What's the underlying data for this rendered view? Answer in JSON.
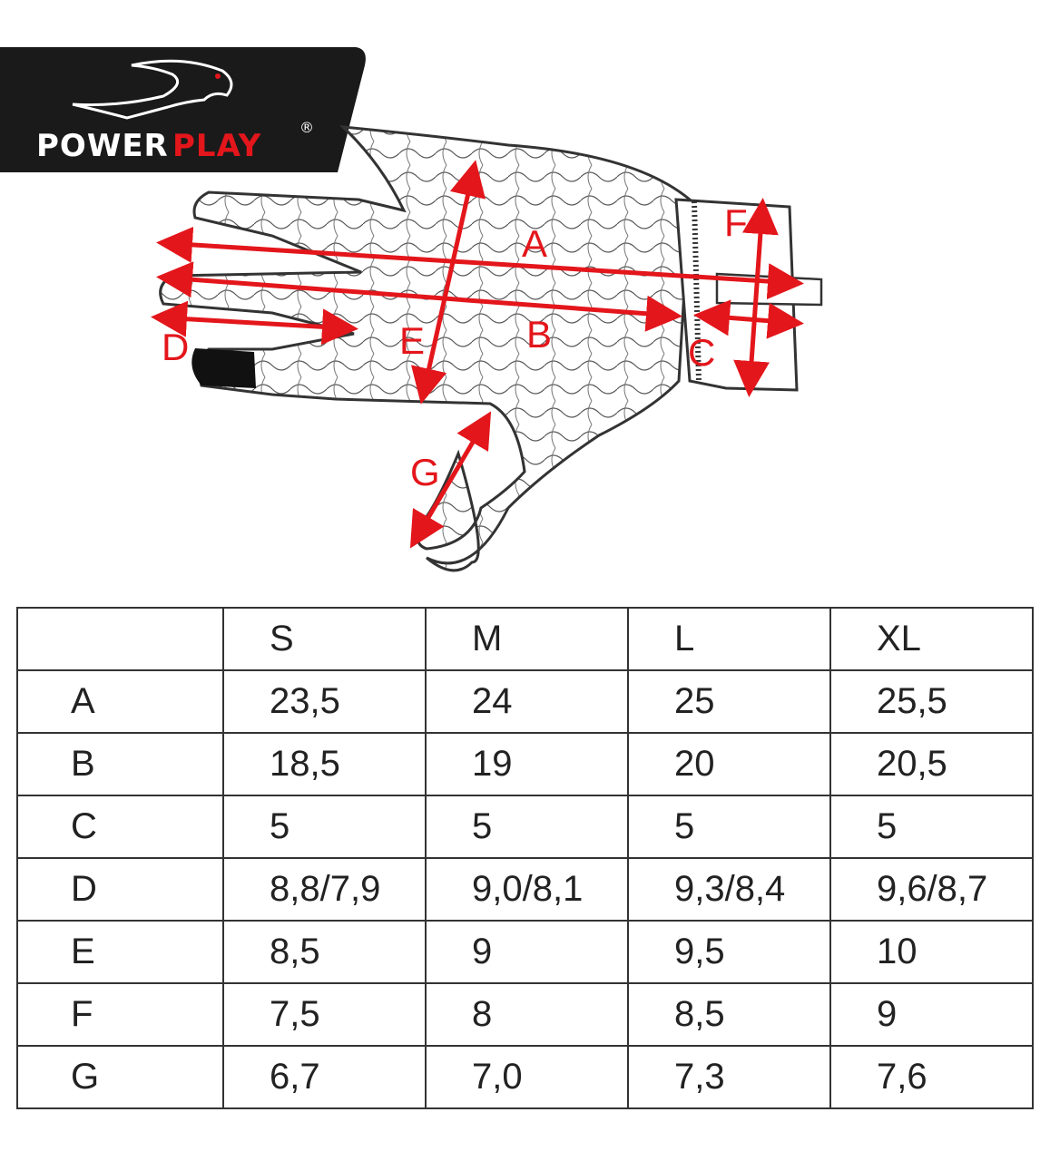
{
  "brand": {
    "name_part1": "POWER",
    "name_part2": "PLAY",
    "registered": "®"
  },
  "colors": {
    "accent": "#e3161b",
    "logo_bg": "#1a1a1a",
    "outline": "#333333"
  },
  "diagram": {
    "labels": {
      "A": "A",
      "B": "B",
      "C": "C",
      "D": "D",
      "E": "E",
      "F": "F",
      "G": "G"
    }
  },
  "size_table": {
    "headers": [
      "",
      "S",
      "M",
      "L",
      "XL"
    ],
    "rows": [
      [
        "A",
        "23,5",
        "24",
        "25",
        "25,5"
      ],
      [
        "B",
        "18,5",
        "19",
        "20",
        "20,5"
      ],
      [
        "C",
        "5",
        "5",
        "5",
        "5"
      ],
      [
        "D",
        "8,8/7,9",
        "9,0/8,1",
        "9,3/8,4",
        "9,6/8,7"
      ],
      [
        "E",
        "8,5",
        "9",
        "9,5",
        "10"
      ],
      [
        "F",
        "7,5",
        "8",
        "8,5",
        "9"
      ],
      [
        "G",
        "6,7",
        "7,0",
        "7,3",
        "7,6"
      ]
    ]
  }
}
